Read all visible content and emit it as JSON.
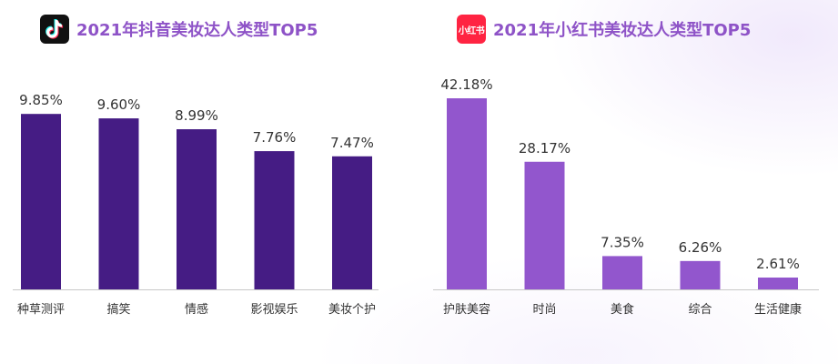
{
  "colors": {
    "left_bar": "#451c84",
    "right_bar": "#9256cd",
    "title": "#8e53c7",
    "value_text": "#333333",
    "axis_text": "#333333",
    "axis_line": "#c8c8c8"
  },
  "icons": {
    "left_logo": "douyin-logo-icon",
    "right_logo": "xiaohongshu-logo-icon",
    "right_logo_text": "小红书"
  },
  "chart_data": [
    {
      "type": "bar",
      "title": "2021年抖音美妆达人类型TOP5",
      "categories": [
        "种草测评",
        "搞笑",
        "情感",
        "影视娱乐",
        "美妆个护"
      ],
      "values": [
        9.85,
        9.6,
        8.99,
        7.76,
        7.47
      ],
      "value_labels": [
        "9.85%",
        "9.60%",
        "8.99%",
        "7.76%",
        "7.47%"
      ],
      "unit": "%",
      "ylim": [
        0,
        11.75
      ],
      "grid": false,
      "legend": "none"
    },
    {
      "type": "bar",
      "title": "2021年小红书美妆达人类型TOP5",
      "categories": [
        "护肤美容",
        "时尚",
        "美食",
        "综合",
        "生活健康"
      ],
      "values": [
        42.18,
        28.17,
        7.35,
        6.26,
        2.61
      ],
      "value_labels": [
        "42.18%",
        "28.17%",
        "7.35%",
        "6.26%",
        "2.61%"
      ],
      "unit": "%",
      "ylim": [
        0,
        46.2
      ],
      "grid": false,
      "legend": "none"
    }
  ]
}
